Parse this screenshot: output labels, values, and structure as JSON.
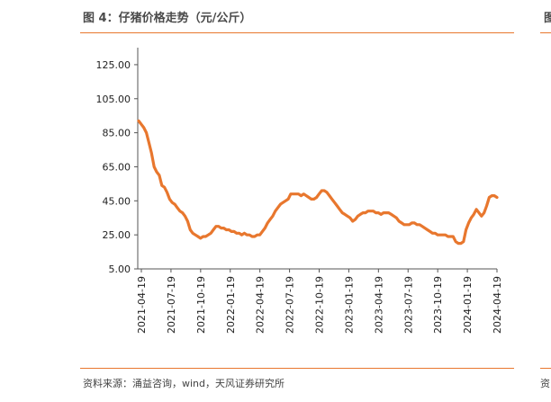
{
  "figure": {
    "title": "图 4：仔猪价格走势（元/公斤）",
    "source": "资料来源：涌益咨询，wind，天风证券研究所"
  },
  "next_panel": {
    "title_fragment": "图",
    "source_fragment": "资"
  },
  "chart_data": {
    "type": "line",
    "title": "仔猪价格走势（元/公斤）",
    "xlabel": "",
    "ylabel": "",
    "ylim": [
      5,
      135
    ],
    "yticks": [
      "5.00",
      "25.00",
      "45.00",
      "65.00",
      "85.00",
      "105.00",
      "125.00"
    ],
    "ytick_values": [
      5,
      25,
      45,
      65,
      85,
      105,
      125
    ],
    "xticks": [
      "2021-04-19",
      "2021-07-19",
      "2021-10-19",
      "2022-01-19",
      "2022-04-19",
      "2022-07-19",
      "2022-10-19",
      "2023-01-19",
      "2023-04-19",
      "2023-07-19",
      "2023-10-19",
      "2024-01-19",
      "2024-04-19"
    ],
    "grid": false,
    "legend": "none",
    "color": "#e8772e",
    "series": [
      {
        "name": "仔猪价格",
        "values": [
          92,
          90,
          88,
          85,
          79,
          73,
          65,
          62,
          60,
          54,
          53,
          50,
          46,
          44,
          43,
          41,
          39,
          38,
          36,
          33,
          28,
          26,
          25,
          24,
          23,
          24,
          24,
          25,
          26,
          28,
          30,
          30,
          29,
          29,
          28,
          28,
          27,
          27,
          26,
          26,
          25,
          26,
          25,
          25,
          24,
          24,
          25,
          25,
          27,
          29,
          32,
          34,
          36,
          39,
          41,
          43,
          44,
          45,
          46,
          49,
          49,
          49,
          49,
          48,
          49,
          48,
          47,
          46,
          46,
          47,
          49,
          51,
          51,
          50,
          48,
          46,
          44,
          42,
          40,
          38,
          37,
          36,
          35,
          33,
          34,
          36,
          37,
          38,
          38,
          39,
          39,
          39,
          38,
          38,
          37,
          38,
          38,
          38,
          37,
          36,
          35,
          33,
          32,
          31,
          31,
          31,
          32,
          32,
          31,
          31,
          30,
          29,
          28,
          27,
          26,
          26,
          25,
          25,
          25,
          25,
          24,
          24,
          24,
          21,
          20,
          20,
          21,
          28,
          32,
          35,
          37,
          40,
          38,
          36,
          38,
          42,
          47,
          48,
          48,
          47
        ]
      }
    ]
  }
}
